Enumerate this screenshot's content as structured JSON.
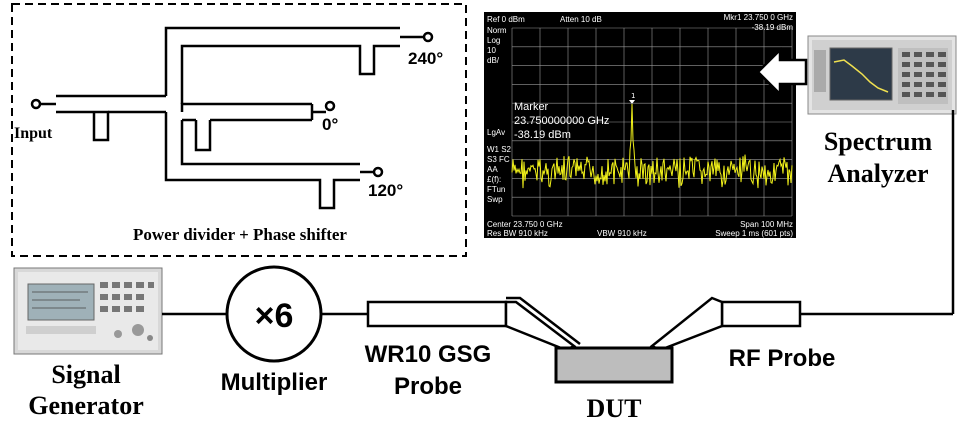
{
  "phase_shifter": {
    "caption": "Power divider + Phase shifter",
    "input_label": "Input",
    "out_240": "240°",
    "out_0": "0°",
    "out_120": "120°"
  },
  "multiplier": {
    "symbol": "×6",
    "label": "Multiplier"
  },
  "signal_generator": {
    "line1": "Signal",
    "line2": "Generator"
  },
  "probe_left": {
    "line1": "WR10 GSG",
    "line2": "Probe"
  },
  "probe_right": {
    "label": "RF Probe"
  },
  "dut": {
    "label": "DUT"
  },
  "spectrum_analyzer": {
    "line1": "Spectrum",
    "line2": "Analyzer"
  },
  "screen": {
    "ref": "Ref 0 dBm",
    "atten": "Atten 10 dB",
    "mkr_head": "Mkr1  23.750 0 GHz",
    "mkr_val": "-38.19 dBm",
    "left_col": [
      "Norm",
      "Log",
      "10",
      "dB/"
    ],
    "lgav": "LgAv",
    "left_col2": [
      "W1  S2",
      "S3  FC",
      "    AA",
      "£(f):",
      "FTun",
      "Swp"
    ],
    "marker_title": "Marker",
    "marker_freq": "23.750000000 GHz",
    "marker_amp": "-38.19 dBm",
    "marker_num": "1",
    "center": "Center 23.750 0 GHz",
    "span": "Span 100 MHz",
    "res_bw": "Res BW 910 kHz",
    "vbw": "VBW 910 kHz",
    "sweep": "Sweep 1 ms (601 pts)"
  },
  "colors": {
    "trace": "#f2f21a",
    "screen_bg": "#000000",
    "grid": "#9a9a9a",
    "dut_fill": "#bdbdbd"
  }
}
